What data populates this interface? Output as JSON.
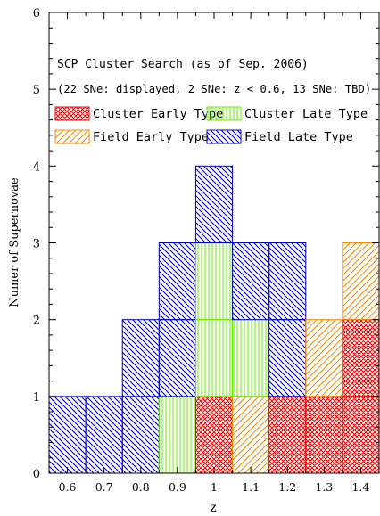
{
  "chart_data": {
    "type": "bar",
    "title": "SCP Cluster Search (as of Sep. 2006)",
    "subtitle": "(22 SNe: displayed, 2 SNe: z < 0.6, 13 SNe: TBD)",
    "xlabel": "z",
    "ylabel": "Numer of Supernovae",
    "xlim": [
      0.55,
      1.45
    ],
    "ylim": [
      0,
      6
    ],
    "x_ticks": [
      "0.6",
      "0.7",
      "0.8",
      "0.9",
      "1",
      "1.1",
      "1.2",
      "1.3",
      "1.4"
    ],
    "x_tick_values": [
      0.6,
      0.7,
      0.8,
      0.9,
      1.0,
      1.1,
      1.2,
      1.3,
      1.4
    ],
    "y_ticks": [
      "0",
      "1",
      "2",
      "3",
      "4",
      "5",
      "6"
    ],
    "y_tick_values": [
      0,
      1,
      2,
      3,
      4,
      5,
      6
    ],
    "bin_width": 0.1,
    "stacking_order": [
      "Cluster Early Type",
      "Field Early Type",
      "Cluster Late Type",
      "Field Late Type"
    ],
    "series": [
      {
        "name": "Cluster Early Type",
        "color": "#ff0000",
        "pattern": "crosshatch",
        "values": [
          0,
          0,
          0,
          0,
          1,
          0,
          1,
          1,
          2
        ]
      },
      {
        "name": "Cluster Late Type",
        "color": "#66ee00",
        "pattern": "vertical",
        "values": [
          0,
          0,
          0,
          1,
          2,
          1,
          0,
          0,
          0
        ]
      },
      {
        "name": "Field Early Type",
        "color": "#ff8800",
        "pattern": "diagonal-up",
        "values": [
          0,
          0,
          0,
          0,
          0,
          1,
          0,
          1,
          1
        ]
      },
      {
        "name": "Field Late Type",
        "color": "#0000cc",
        "pattern": "diagonal-down",
        "values": [
          1,
          1,
          2,
          2,
          1,
          1,
          2,
          0,
          0
        ]
      }
    ],
    "legend_placement": "top",
    "grid": false
  }
}
